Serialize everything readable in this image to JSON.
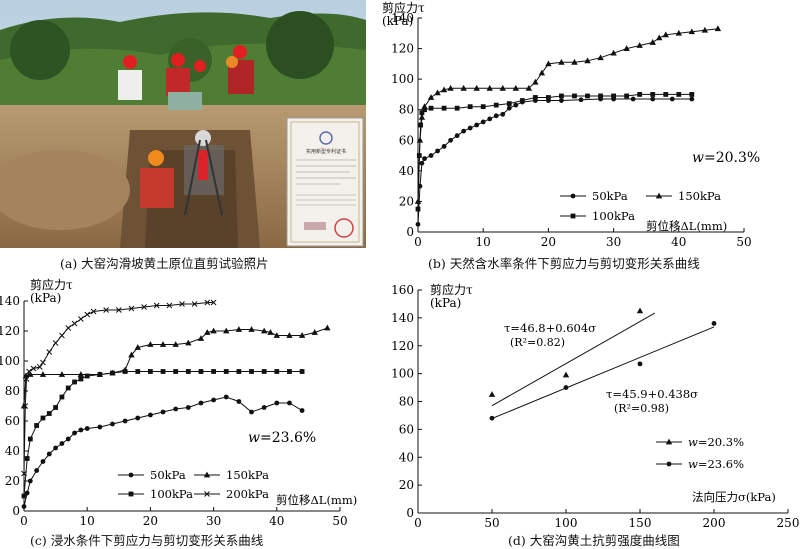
{
  "panels": {
    "a": {
      "caption": "(a) 大窑沟滑坡黄土原位直剪试验照片",
      "certificate": {
        "header": "实用新型专利证书"
      }
    },
    "b": {
      "caption": "(b) 天然含水率条件下剪应力与剪切变形关系曲线",
      "ylabel_line1": "剪应力τ",
      "ylabel_line2": "(kPa)",
      "xlabel": "剪位移ΔL(mm)",
      "annotation_w": "w",
      "annotation_val": "=20.3%"
    },
    "c": {
      "caption": "(c) 浸水条件下剪应力与剪切变形关系曲线",
      "ylabel_line1": "剪应力τ",
      "ylabel_line2": "(kPa)",
      "xlabel": "剪位移ΔL(mm)",
      "annotation_w": "w",
      "annotation_val": "=23.6%"
    },
    "d": {
      "caption": "(d) 大窑沟黄土抗剪强度曲线图",
      "ylabel_line1": "剪应力τ",
      "ylabel_line2": "(kPa)",
      "xlabel": "法向压力σ(kPa)",
      "eq1": "τ=46.8+0.604σ",
      "r1": "(R²=0.82)",
      "eq2": "τ=45.9+0.438σ",
      "r2": "(R²=0.98)"
    }
  },
  "chart_data": [
    {
      "id": "b",
      "type": "line",
      "xlabel": "剪位移ΔL(mm)",
      "ylabel": "剪应力τ (kPa)",
      "xlim": [
        0,
        50
      ],
      "ylim": [
        0,
        140
      ],
      "xticks": [
        0,
        10,
        20,
        30,
        40,
        50
      ],
      "yticks": [
        0,
        20,
        40,
        60,
        80,
        100,
        120,
        140
      ],
      "legend": "bottom-right",
      "series": [
        {
          "name": "50kPa",
          "marker": "circle",
          "points": [
            [
              0,
              5
            ],
            [
              0.3,
              30
            ],
            [
              0.6,
              45
            ],
            [
              1,
              48
            ],
            [
              2,
              50
            ],
            [
              3,
              53
            ],
            [
              4,
              56
            ],
            [
              5,
              60
            ],
            [
              6,
              63
            ],
            [
              7,
              66
            ],
            [
              8,
              68
            ],
            [
              9,
              70
            ],
            [
              10,
              72
            ],
            [
              11,
              74
            ],
            [
              12,
              76
            ],
            [
              13,
              77
            ],
            [
              14,
              81
            ],
            [
              15,
              83
            ],
            [
              16,
              85
            ],
            [
              18,
              86
            ],
            [
              20,
              86
            ],
            [
              22,
              86
            ],
            [
              25,
              86.5
            ],
            [
              28,
              87
            ],
            [
              30,
              87
            ],
            [
              33,
              87
            ],
            [
              36,
              87
            ],
            [
              39,
              87
            ],
            [
              42,
              87
            ]
          ]
        },
        {
          "name": "150kPa",
          "marker": "triangle",
          "points": [
            [
              0,
              20
            ],
            [
              0.3,
              60
            ],
            [
              0.6,
              75
            ],
            [
              1,
              82
            ],
            [
              2,
              88
            ],
            [
              3,
              91
            ],
            [
              4,
              93
            ],
            [
              5,
              94
            ],
            [
              7,
              94
            ],
            [
              9,
              94
            ],
            [
              11,
              94
            ],
            [
              13,
              94
            ],
            [
              15,
              94
            ],
            [
              17,
              94
            ],
            [
              18,
              98
            ],
            [
              19,
              104
            ],
            [
              20,
              110
            ],
            [
              22,
              111
            ],
            [
              24,
              111
            ],
            [
              26,
              112
            ],
            [
              28,
              114
            ],
            [
              30,
              117
            ],
            [
              32,
              120
            ],
            [
              34,
              122
            ],
            [
              36,
              124
            ],
            [
              37,
              127
            ],
            [
              38,
              129
            ],
            [
              40,
              130
            ],
            [
              42,
              131
            ],
            [
              44,
              132
            ],
            [
              46,
              133
            ]
          ]
        },
        {
          "name": "100kPa",
          "marker": "square",
          "points": [
            [
              0,
              15
            ],
            [
              0.2,
              50
            ],
            [
              0.4,
              70
            ],
            [
              0.6,
              78
            ],
            [
              1,
              80
            ],
            [
              2,
              81
            ],
            [
              4,
              81
            ],
            [
              6,
              81
            ],
            [
              8,
              82
            ],
            [
              10,
              82
            ],
            [
              12,
              83
            ],
            [
              14,
              84
            ],
            [
              16,
              86
            ],
            [
              18,
              88
            ],
            [
              20,
              88
            ],
            [
              22,
              89
            ],
            [
              24,
              89
            ],
            [
              26,
              89
            ],
            [
              28,
              89
            ],
            [
              30,
              89
            ],
            [
              32,
              89
            ],
            [
              34,
              90
            ],
            [
              36,
              90
            ],
            [
              38,
              90
            ],
            [
              40,
              90
            ],
            [
              42,
              90
            ]
          ]
        }
      ]
    },
    {
      "id": "c",
      "type": "line",
      "xlabel": "剪位移ΔL(mm)",
      "ylabel": "剪应力τ (kPa)",
      "xlim": [
        0,
        50
      ],
      "ylim": [
        0,
        140
      ],
      "xticks": [
        0,
        10,
        20,
        30,
        40,
        50
      ],
      "yticks": [
        0,
        20,
        40,
        60,
        80,
        100,
        120,
        140
      ],
      "legend": "bottom-left",
      "series": [
        {
          "name": "50kPa",
          "marker": "circle",
          "points": [
            [
              0,
              3
            ],
            [
              0.5,
              12
            ],
            [
              1,
              20
            ],
            [
              2,
              27
            ],
            [
              3,
              33
            ],
            [
              4,
              38
            ],
            [
              5,
              42
            ],
            [
              6,
              45
            ],
            [
              7,
              48
            ],
            [
              8,
              52
            ],
            [
              9,
              54
            ],
            [
              10,
              55
            ],
            [
              12,
              56
            ],
            [
              14,
              58
            ],
            [
              16,
              60
            ],
            [
              18,
              62
            ],
            [
              20,
              64
            ],
            [
              22,
              66
            ],
            [
              24,
              68
            ],
            [
              26,
              69
            ],
            [
              28,
              72
            ],
            [
              30,
              74
            ],
            [
              32,
              76
            ],
            [
              34,
              73
            ],
            [
              36,
              66
            ],
            [
              38,
              69
            ],
            [
              40,
              72
            ],
            [
              42,
              72
            ],
            [
              44,
              67
            ]
          ]
        },
        {
          "name": "150kPa",
          "marker": "triangle",
          "points": [
            [
              0,
              70
            ],
            [
              0.3,
              90
            ],
            [
              1,
              91
            ],
            [
              3,
              91
            ],
            [
              6,
              91
            ],
            [
              9,
              91
            ],
            [
              12,
              91
            ],
            [
              14,
              92
            ],
            [
              16,
              94
            ],
            [
              17,
              104
            ],
            [
              18,
              109
            ],
            [
              20,
              111
            ],
            [
              22,
              111
            ],
            [
              24,
              111
            ],
            [
              26,
              112
            ],
            [
              28,
              115
            ],
            [
              29,
              119
            ],
            [
              30,
              120
            ],
            [
              32,
              120
            ],
            [
              34,
              121
            ],
            [
              36,
              121
            ],
            [
              38,
              120
            ],
            [
              39,
              119
            ],
            [
              40,
              117
            ],
            [
              42,
              117
            ],
            [
              44,
              117
            ],
            [
              46,
              119
            ],
            [
              48,
              122
            ]
          ]
        },
        {
          "name": "100kPa",
          "marker": "square",
          "points": [
            [
              0,
              10
            ],
            [
              0.5,
              35
            ],
            [
              1,
              48
            ],
            [
              2,
              57
            ],
            [
              3,
              62
            ],
            [
              4,
              65
            ],
            [
              5,
              69
            ],
            [
              6,
              76
            ],
            [
              7,
              82
            ],
            [
              8,
              86
            ],
            [
              9,
              88
            ],
            [
              10,
              90
            ],
            [
              12,
              91
            ],
            [
              14,
              92
            ],
            [
              16,
              93
            ],
            [
              18,
              93
            ],
            [
              20,
              93
            ],
            [
              22,
              93
            ],
            [
              24,
              93
            ],
            [
              26,
              93
            ],
            [
              28,
              93
            ],
            [
              30,
              93
            ],
            [
              32,
              93
            ],
            [
              34,
              93
            ],
            [
              36,
              93
            ],
            [
              38,
              93
            ],
            [
              40,
              93
            ],
            [
              42,
              93
            ],
            [
              44,
              93
            ]
          ]
        },
        {
          "name": "200kPa",
          "marker": "x",
          "points": [
            [
              0,
              25
            ],
            [
              0.2,
              70
            ],
            [
              0.4,
              88
            ],
            [
              0.8,
              93
            ],
            [
              1.5,
              95
            ],
            [
              2.5,
              96
            ],
            [
              3,
              99
            ],
            [
              4,
              106
            ],
            [
              5,
              112
            ],
            [
              6,
              117
            ],
            [
              7,
              122
            ],
            [
              8,
              125
            ],
            [
              9,
              128
            ],
            [
              10,
              131
            ],
            [
              11,
              133
            ],
            [
              13,
              134
            ],
            [
              15,
              134
            ],
            [
              17,
              135
            ],
            [
              19,
              136
            ],
            [
              21,
              137
            ],
            [
              23,
              137
            ],
            [
              25,
              138
            ],
            [
              27,
              138
            ],
            [
              29,
              139
            ],
            [
              30,
              139
            ]
          ]
        }
      ]
    },
    {
      "id": "d",
      "type": "scatter",
      "xlabel": "法向压力σ(kPa)",
      "ylabel": "剪应力τ (kPa)",
      "xlim": [
        0,
        250
      ],
      "ylim": [
        0,
        160
      ],
      "xticks": [
        0,
        50,
        100,
        150,
        200,
        250
      ],
      "yticks": [
        0,
        20,
        40,
        60,
        80,
        100,
        120,
        140,
        160
      ],
      "legend": "bottom-right",
      "series": [
        {
          "name": "w=20.3%",
          "marker": "triangle",
          "points": [
            [
              50,
              85
            ],
            [
              100,
              99
            ],
            [
              150,
              145
            ]
          ],
          "fit": {
            "intercept": 46.8,
            "slope": 0.604,
            "from": 50,
            "to": 160
          }
        },
        {
          "name": "w=23.6%",
          "marker": "circle",
          "points": [
            [
              50,
              68
            ],
            [
              100,
              90
            ],
            [
              150,
              107
            ],
            [
              200,
              136
            ]
          ],
          "fit": {
            "intercept": 45.9,
            "slope": 0.438,
            "from": 50,
            "to": 200
          }
        }
      ]
    }
  ]
}
